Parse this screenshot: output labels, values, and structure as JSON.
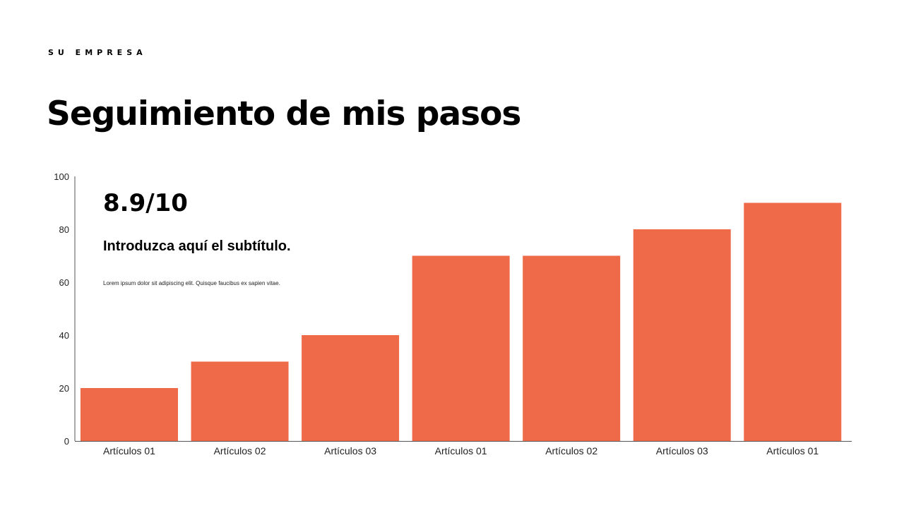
{
  "header": {
    "company": "SU EMPRESA",
    "title": "Seguimiento de mis pasos"
  },
  "callout": {
    "score": "8.9/10",
    "subtitle": "Introduzca aquí el subtítulo.",
    "body": "Lorem ipsum dolor sit adipiscing elit. Quisque faucibus ex sapien vitae."
  },
  "chart_data": {
    "type": "bar",
    "categories": [
      "Artículos 01",
      "Artículos 02",
      "Artículos 03",
      "Artículos 01",
      "Artículos 02",
      "Artículos 03",
      "Artículos 01"
    ],
    "values": [
      20,
      30,
      40,
      70,
      70,
      80,
      90
    ],
    "ylim": [
      0,
      100
    ],
    "yticks": [
      0,
      20,
      40,
      60,
      80,
      100
    ],
    "title": "",
    "xlabel": "",
    "ylabel": "",
    "grid": false,
    "legend": "none",
    "colors": {
      "bar": "#EF6A48",
      "axis": "#555555",
      "text": "#222222"
    }
  }
}
